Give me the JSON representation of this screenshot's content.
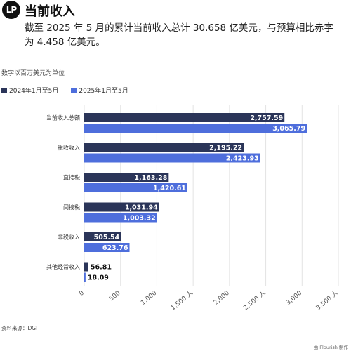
{
  "header": {
    "logo_text": "LP",
    "title": "当前收入",
    "subtitle": "截至 2025 年 5 月的累计当前收入总计 30.658 亿美元，与预算相比赤字为 4.458 亿美元。"
  },
  "colors": {
    "series_2024": "#2b3559",
    "series_2025": "#4e6edc"
  },
  "chart_data": {
    "type": "bar",
    "orientation": "horizontal",
    "unit_note": "数字以百万美元为单位",
    "categories": [
      "当前收入总额",
      "税收收入",
      "直接税",
      "间接税",
      "非税收入",
      "其他经常收入"
    ],
    "series": [
      {
        "name": "2024年1月至5月",
        "values": [
          2757.59,
          2195.22,
          1163.28,
          1031.94,
          505.54,
          56.81
        ],
        "labels": [
          "2,757.59",
          "2,195.22",
          "1,163.28",
          "1,031.94",
          "505.54",
          "56.81"
        ]
      },
      {
        "name": "2025年1月至5月",
        "values": [
          3065.79,
          2423.93,
          1420.61,
          1003.32,
          623.76,
          18.09
        ],
        "labels": [
          "3,065.79",
          "2,423.93",
          "1,420.61",
          "1,003.32",
          "623.76",
          "18.09"
        ]
      }
    ],
    "xlim": [
      0,
      3500
    ],
    "x_ticks": [
      0,
      500,
      1000,
      1500,
      2000,
      2500,
      3000,
      3500
    ],
    "x_tick_labels": [
      "0",
      "500",
      "1,000",
      "1,500 人",
      "2,000",
      "2,500 人",
      "3,000",
      "3,500 人"
    ],
    "grid": true,
    "legend": "top-left"
  },
  "footer": {
    "source": "资料来源：DGI",
    "credit": "由 Flourish 制作"
  }
}
